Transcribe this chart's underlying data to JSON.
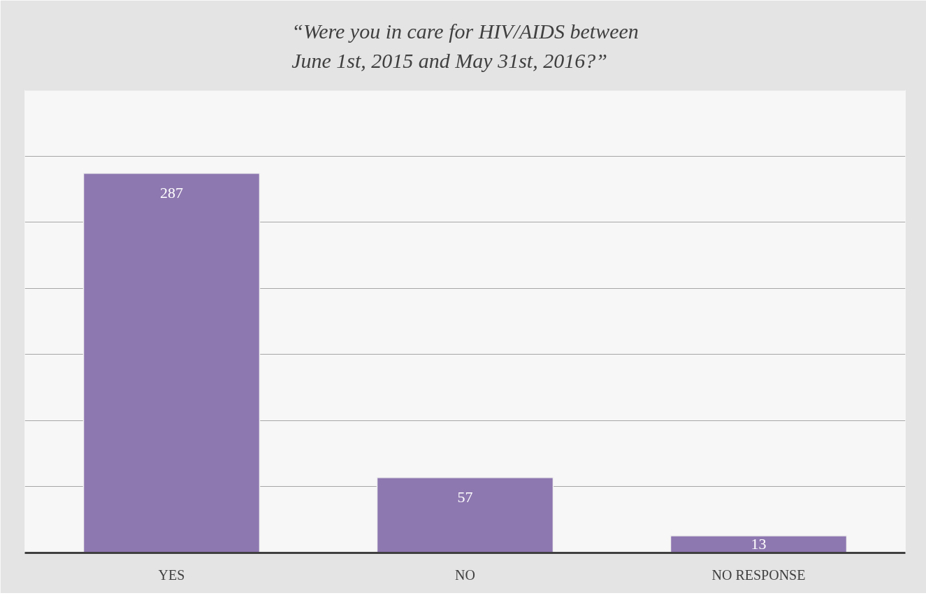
{
  "chart_data": {
    "type": "bar",
    "title": "“Were you in care for HIV/AIDS between\nJune 1st, 2015 and May 31st, 2016?”",
    "categories": [
      "YES",
      "NO",
      "NO RESPONSE"
    ],
    "values": [
      287,
      57,
      13
    ],
    "color": "#8e78b0",
    "ylim": [
      0,
      350
    ],
    "yticks": [
      {
        "value": 0,
        "label": null
      },
      {
        "value": 50,
        "label": null
      },
      {
        "value": 100,
        "label": null
      },
      {
        "value": 150,
        "label": null
      },
      {
        "value": 200,
        "label": null
      },
      {
        "value": 250,
        "label": null
      },
      {
        "value": 300,
        "label": null
      },
      {
        "value": 350,
        "label": null
      }
    ],
    "grid": "y",
    "data_labels": true,
    "tick_labels": "x"
  }
}
